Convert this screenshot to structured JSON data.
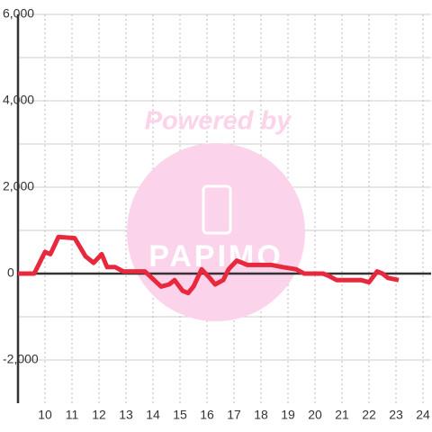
{
  "chart_data": {
    "type": "line",
    "watermark": {
      "text": "Powered by",
      "brand": "PAPIMO"
    },
    "x": [
      9.0,
      9.6,
      10.0,
      10.2,
      10.5,
      11.1,
      11.5,
      11.8,
      12.1,
      12.3,
      12.6,
      12.9,
      13.7,
      14.3,
      14.6,
      14.8,
      15.1,
      15.3,
      15.5,
      15.8,
      16.1,
      16.3,
      16.6,
      16.8,
      17.1,
      17.3,
      17.5,
      18.4,
      18.8,
      19.3,
      19.6,
      20.3,
      20.5,
      20.8,
      21.7,
      22.0,
      22.3,
      22.5,
      22.7,
      23.1
    ],
    "series": [
      {
        "color": "#e8283c",
        "values": [
          0,
          0,
          500,
          450,
          850,
          820,
          400,
          250,
          450,
          150,
          150,
          50,
          50,
          -300,
          -250,
          -150,
          -400,
          -450,
          -300,
          100,
          -100,
          -250,
          -150,
          100,
          300,
          250,
          200,
          200,
          150,
          100,
          0,
          0,
          -50,
          -150,
          -150,
          -200,
          50,
          0,
          -100,
          -150
        ]
      }
    ],
    "xlim": [
      9,
      24.3
    ],
    "xticks": [
      10,
      11,
      12,
      13,
      14,
      15,
      16,
      17,
      18,
      19,
      20,
      21,
      22,
      23,
      24
    ],
    "ylim": [
      -3000,
      6000
    ],
    "yticks": [
      {
        "value": -2000,
        "label": "-2,000"
      },
      0,
      {
        "value": 2000,
        "label": "2,000"
      },
      {
        "value": 4000,
        "label": "4,000"
      },
      {
        "value": 6000,
        "label": "6,000"
      }
    ],
    "y_minor_gridlines": [
      -1000,
      1000,
      3000,
      5000
    ],
    "grid": true
  }
}
